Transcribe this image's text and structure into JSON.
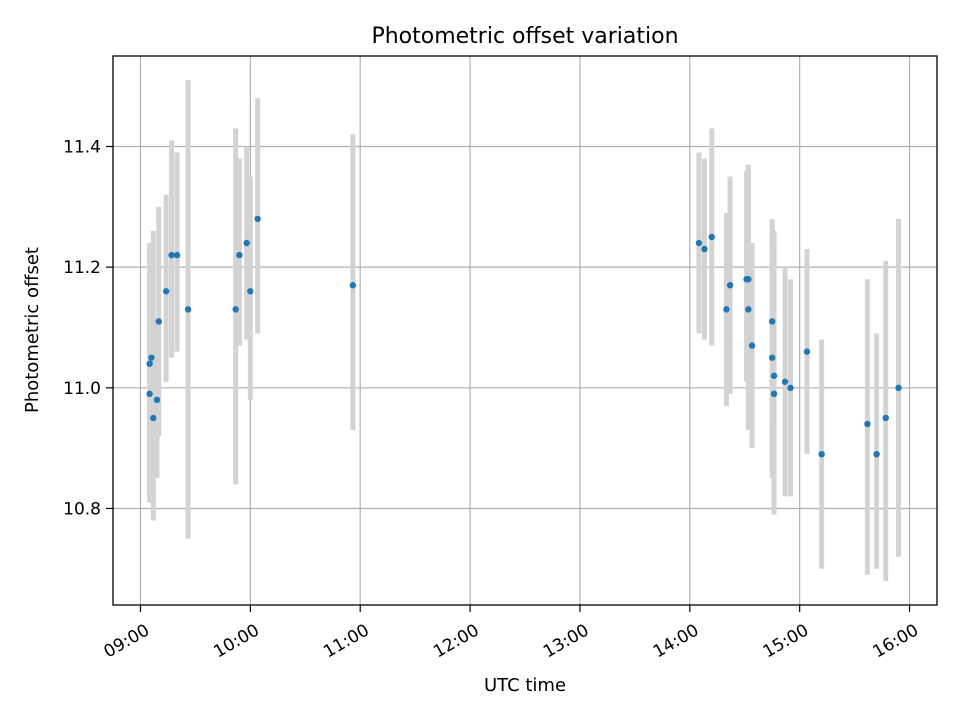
{
  "chart_data": {
    "type": "scatter",
    "title": "Photometric offset variation",
    "xlabel": "UTC time",
    "ylabel": "Photometric offset",
    "x_axis": "time",
    "xlim": [
      "08:45",
      "16:15"
    ],
    "ylim": [
      10.64,
      11.55
    ],
    "x_ticks": [
      "09:00",
      "10:00",
      "11:00",
      "12:00",
      "13:00",
      "14:00",
      "15:00",
      "16:00"
    ],
    "y_ticks": [
      10.8,
      11.0,
      11.2,
      11.4
    ],
    "y_tick_labels": [
      "10.8",
      "11.0",
      "11.2",
      "11.4"
    ],
    "grid": true,
    "marker_color": "#1f77b4",
    "errorbar_color": "#d3d3d3",
    "series": [
      {
        "points": [
          {
            "x": "09:05",
            "y": 10.99,
            "lo": 10.81,
            "hi": 11.17
          },
          {
            "x": "09:05",
            "y": 11.04,
            "lo": 10.84,
            "hi": 11.24
          },
          {
            "x": "09:06",
            "y": 11.05,
            "lo": 10.89,
            "hi": 11.21
          },
          {
            "x": "09:07",
            "y": 10.95,
            "lo": 10.78,
            "hi": 11.26
          },
          {
            "x": "09:09",
            "y": 10.98,
            "lo": 10.85,
            "hi": 11.11
          },
          {
            "x": "09:10",
            "y": 11.11,
            "lo": 10.92,
            "hi": 11.3
          },
          {
            "x": "09:14",
            "y": 11.16,
            "lo": 11.01,
            "hi": 11.32
          },
          {
            "x": "09:17",
            "y": 11.22,
            "lo": 11.05,
            "hi": 11.41
          },
          {
            "x": "09:20",
            "y": 11.22,
            "lo": 11.06,
            "hi": 11.39
          },
          {
            "x": "09:26",
            "y": 11.13,
            "lo": 10.75,
            "hi": 11.51
          },
          {
            "x": "09:52",
            "y": 11.13,
            "lo": 10.84,
            "hi": 11.43
          },
          {
            "x": "09:54",
            "y": 11.22,
            "lo": 11.07,
            "hi": 11.38
          },
          {
            "x": "09:58",
            "y": 11.24,
            "lo": 11.08,
            "hi": 11.4
          },
          {
            "x": "10:00",
            "y": 11.16,
            "lo": 10.98,
            "hi": 11.35
          },
          {
            "x": "10:04",
            "y": 11.28,
            "lo": 11.09,
            "hi": 11.48
          },
          {
            "x": "10:56",
            "y": 11.17,
            "lo": 10.93,
            "hi": 11.42
          },
          {
            "x": "14:05",
            "y": 11.24,
            "lo": 11.09,
            "hi": 11.39
          },
          {
            "x": "14:08",
            "y": 11.23,
            "lo": 11.08,
            "hi": 11.38
          },
          {
            "x": "14:12",
            "y": 11.25,
            "lo": 11.07,
            "hi": 11.43
          },
          {
            "x": "14:20",
            "y": 11.13,
            "lo": 10.97,
            "hi": 11.29
          },
          {
            "x": "14:22",
            "y": 11.17,
            "lo": 10.99,
            "hi": 11.35
          },
          {
            "x": "14:31",
            "y": 11.18,
            "lo": 11.01,
            "hi": 11.36
          },
          {
            "x": "14:32",
            "y": 11.18,
            "lo": 10.98,
            "hi": 11.37
          },
          {
            "x": "14:32",
            "y": 11.13,
            "lo": 10.93,
            "hi": 11.32
          },
          {
            "x": "14:34",
            "y": 11.07,
            "lo": 10.9,
            "hi": 11.24
          },
          {
            "x": "14:45",
            "y": 11.11,
            "lo": 10.94,
            "hi": 11.28
          },
          {
            "x": "14:45",
            "y": 11.05,
            "lo": 10.85,
            "hi": 11.24
          },
          {
            "x": "14:46",
            "y": 11.02,
            "lo": 10.79,
            "hi": 11.26
          },
          {
            "x": "14:46",
            "y": 10.99,
            "lo": 10.81,
            "hi": 11.18
          },
          {
            "x": "14:52",
            "y": 11.01,
            "lo": 10.82,
            "hi": 11.2
          },
          {
            "x": "14:55",
            "y": 11.0,
            "lo": 10.82,
            "hi": 11.18
          },
          {
            "x": "15:04",
            "y": 11.06,
            "lo": 10.89,
            "hi": 11.23
          },
          {
            "x": "15:12",
            "y": 10.89,
            "lo": 10.7,
            "hi": 11.08
          },
          {
            "x": "15:37",
            "y": 10.94,
            "lo": 10.69,
            "hi": 11.18
          },
          {
            "x": "15:42",
            "y": 10.89,
            "lo": 10.7,
            "hi": 11.09
          },
          {
            "x": "15:47",
            "y": 10.95,
            "lo": 10.68,
            "hi": 11.21
          },
          {
            "x": "15:54",
            "y": 11.0,
            "lo": 10.72,
            "hi": 11.28
          }
        ]
      }
    ]
  }
}
